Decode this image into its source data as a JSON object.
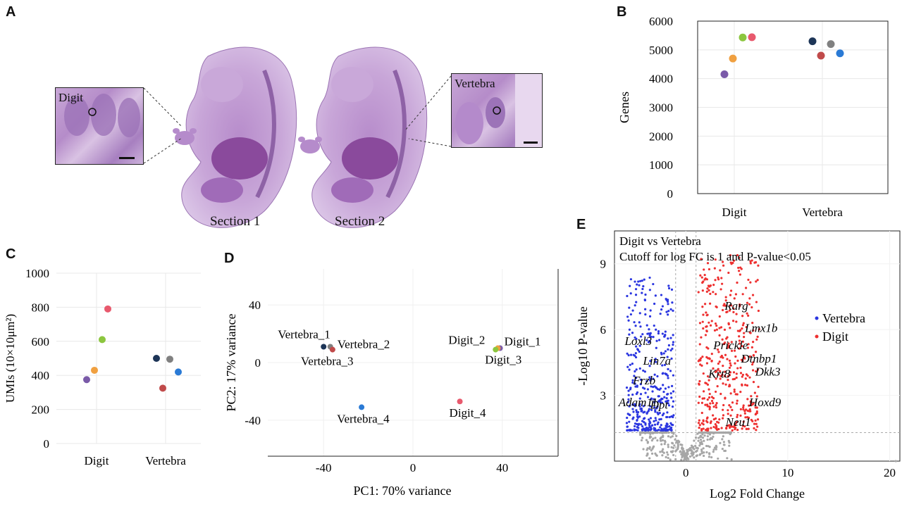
{
  "panels": {
    "A": {
      "letter": "A",
      "section_labels": [
        "Section 1",
        "Section 2"
      ],
      "inset_labels": [
        "Digit",
        "Vertebra"
      ]
    },
    "B": {
      "letter": "B"
    },
    "C": {
      "letter": "C"
    },
    "D": {
      "letter": "D"
    },
    "E": {
      "letter": "E",
      "title": "Digit vs Vertebra",
      "cutoff_text": "Cutoff for log FC is 1 and P-value<0.05",
      "gene_labels_vertebra": [
        "Loxl3",
        "Lin7a",
        "Frzb",
        "Adam11",
        "Dpt"
      ],
      "gene_labels_digit": [
        "Rarg",
        "Lmx1b",
        "Prickle",
        "Dtnbp1",
        "Krt8",
        "Dkk3",
        "Hoxd9",
        "Neu1"
      ]
    }
  },
  "colors": {
    "sample_colors": [
      "#7a5aa8",
      "#f0a040",
      "#8cc63f",
      "#e8596d",
      "#1d3557",
      "#c04a4a",
      "#808080",
      "#2a7ad5"
    ],
    "vertebra": "#2b36e0",
    "digit": "#ee3030",
    "nonsig": "#a6a6a6"
  },
  "chart_data": [
    {
      "panel": "B",
      "type": "scatter",
      "ylabel": "Genes",
      "xlabel": "",
      "categories": [
        "Digit",
        "Vertebra"
      ],
      "ylim": [
        0,
        6000
      ],
      "yticks": [
        0,
        1000,
        2000,
        3000,
        4000,
        5000,
        6000
      ],
      "points": [
        {
          "category": "Digit",
          "value": 4150,
          "color": "#7a5aa8"
        },
        {
          "category": "Digit",
          "value": 4700,
          "color": "#f0a040"
        },
        {
          "category": "Digit",
          "value": 5430,
          "color": "#8cc63f"
        },
        {
          "category": "Digit",
          "value": 5440,
          "color": "#e8596d"
        },
        {
          "category": "Vertebra",
          "value": 5300,
          "color": "#1d3557"
        },
        {
          "category": "Vertebra",
          "value": 4800,
          "color": "#c04a4a"
        },
        {
          "category": "Vertebra",
          "value": 5200,
          "color": "#808080"
        },
        {
          "category": "Vertebra",
          "value": 4880,
          "color": "#2a7ad5"
        }
      ]
    },
    {
      "panel": "C",
      "type": "scatter",
      "ylabel": "UMIs (10×10μm²)",
      "xlabel": "",
      "categories": [
        "Digit",
        "Vertebra"
      ],
      "ylim": [
        0,
        1000
      ],
      "yticks": [
        0,
        200,
        400,
        600,
        800,
        1000
      ],
      "points": [
        {
          "category": "Digit",
          "value": 375,
          "color": "#7a5aa8"
        },
        {
          "category": "Digit",
          "value": 430,
          "color": "#f0a040"
        },
        {
          "category": "Digit",
          "value": 610,
          "color": "#8cc63f"
        },
        {
          "category": "Digit",
          "value": 790,
          "color": "#e8596d"
        },
        {
          "category": "Vertebra",
          "value": 500,
          "color": "#1d3557"
        },
        {
          "category": "Vertebra",
          "value": 325,
          "color": "#c04a4a"
        },
        {
          "category": "Vertebra",
          "value": 495,
          "color": "#808080"
        },
        {
          "category": "Vertebra",
          "value": 420,
          "color": "#2a7ad5"
        }
      ]
    },
    {
      "panel": "D",
      "type": "scatter",
      "xlabel": "PC1: 70% variance",
      "ylabel": "PC2: 17% variance",
      "xlim": [
        -65,
        65
      ],
      "ylim": [
        -65,
        65
      ],
      "xticks": [
        -40,
        0,
        40
      ],
      "yticks": [
        -40,
        0,
        40
      ],
      "points": [
        {
          "label": "Vertebra_1",
          "x": -40,
          "y": 11,
          "color": "#1d3557"
        },
        {
          "label": "Vertebra_2",
          "x": -37,
          "y": 11,
          "color": "#808080"
        },
        {
          "label": "Vertebra_3",
          "x": -36,
          "y": 9,
          "color": "#c04a4a"
        },
        {
          "label": "Vertebra_4",
          "x": -23,
          "y": -31,
          "color": "#2a7ad5"
        },
        {
          "label": "Digit_1",
          "x": 39,
          "y": 10,
          "color": "#7a5aa8"
        },
        {
          "label": "Digit_2",
          "x": 38,
          "y": 10,
          "color": "#f0a040"
        },
        {
          "label": "Digit_3",
          "x": 37,
          "y": 9,
          "color": "#8cc63f"
        },
        {
          "label": "Digit_4",
          "x": 21,
          "y": -27,
          "color": "#e8596d"
        }
      ]
    },
    {
      "panel": "E",
      "type": "scatter",
      "xlabel": "Log2 Fold Change",
      "ylabel": "-Log10 P-value",
      "xlim": [
        -7,
        21
      ],
      "ylim": [
        0,
        10.5
      ],
      "xticks": [
        0,
        10,
        20
      ],
      "yticks": [
        3,
        6,
        9
      ],
      "logfc_cutoff": 1,
      "pvalue_cutoff": 0.05,
      "series": [
        {
          "name": "Vertebra",
          "color": "#2b36e0"
        },
        {
          "name": "Digit",
          "color": "#ee3030"
        }
      ]
    }
  ]
}
